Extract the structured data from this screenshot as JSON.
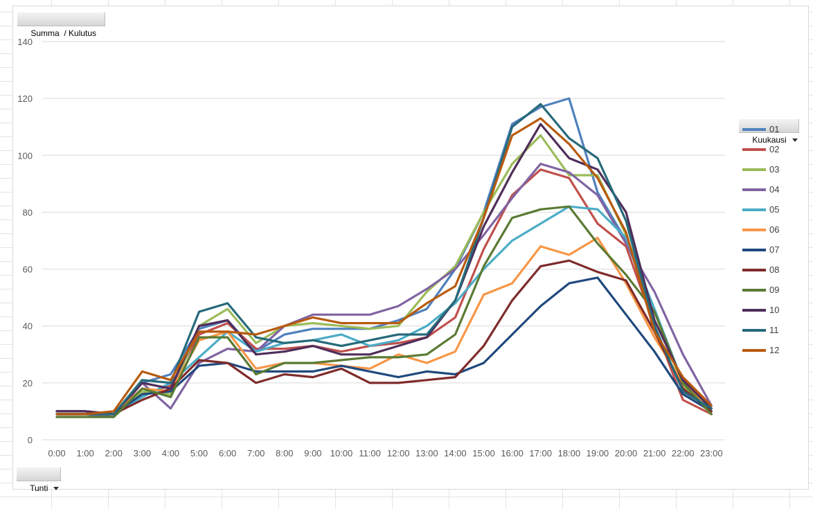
{
  "value_field_button": "Summa  / Kulutus",
  "axis_field_button": "Tunti",
  "legend_field_button": "Kuukausi",
  "chart_data": {
    "type": "line",
    "title": "",
    "xlabel": "",
    "ylabel": "",
    "ylim": [
      0,
      140
    ],
    "yticks": [
      0,
      20,
      40,
      60,
      80,
      100,
      120,
      140
    ],
    "grid": true,
    "legend_position": "right",
    "x": [
      "0:00",
      "1:00",
      "2:00",
      "3:00",
      "4:00",
      "5:00",
      "6:00",
      "7:00",
      "8:00",
      "9:00",
      "10:00",
      "11:00",
      "12:00",
      "13:00",
      "14:00",
      "15:00",
      "16:00",
      "17:00",
      "18:00",
      "19:00",
      "20:00",
      "21:00",
      "22:00",
      "23:00"
    ],
    "series": [
      {
        "name": "01",
        "color": "#4f81bd",
        "values": [
          10,
          10,
          9,
          20,
          23,
          39,
          42,
          31,
          37,
          39,
          39,
          39,
          42,
          46,
          60,
          80,
          111,
          117,
          120,
          87,
          70,
          45,
          20,
          11
        ]
      },
      {
        "name": "02",
        "color": "#c0504d",
        "values": [
          9,
          9,
          9,
          16,
          19,
          37,
          41,
          32,
          32,
          33,
          31,
          33,
          34,
          36,
          43,
          67,
          86,
          95,
          92,
          76,
          68,
          40,
          14,
          9
        ]
      },
      {
        "name": "03",
        "color": "#9bbb59",
        "values": [
          9,
          9,
          8,
          17,
          16,
          40,
          46,
          34,
          40,
          41,
          40,
          39,
          40,
          52,
          61,
          80,
          97,
          107,
          93,
          93,
          72,
          45,
          19,
          9
        ]
      },
      {
        "name": "04",
        "color": "#8064a2",
        "values": [
          9,
          9,
          8,
          20,
          11,
          27,
          32,
          31,
          40,
          44,
          44,
          44,
          47,
          53,
          60,
          72,
          85,
          97,
          94,
          86,
          69,
          52,
          30,
          12
        ]
      },
      {
        "name": "05",
        "color": "#4bacc6",
        "values": [
          9,
          9,
          9,
          15,
          20,
          29,
          38,
          31,
          34,
          35,
          37,
          33,
          35,
          40,
          48,
          60,
          70,
          76,
          82,
          81,
          71,
          46,
          20,
          10
        ]
      },
      {
        "name": "06",
        "color": "#f79646",
        "values": [
          9,
          9,
          9,
          18,
          17,
          35,
          38,
          25,
          27,
          27,
          26,
          25,
          30,
          27,
          31,
          51,
          55,
          68,
          65,
          71,
          55,
          36,
          20,
          11
        ]
      },
      {
        "name": "07",
        "color": "#1f497d",
        "values": [
          9,
          9,
          9,
          16,
          17,
          26,
          27,
          24,
          24,
          24,
          26,
          24,
          22,
          24,
          23,
          27,
          37,
          47,
          55,
          57,
          44,
          31,
          16,
          10
        ]
      },
      {
        "name": "08",
        "color": "#7f2b2b",
        "values": [
          10,
          10,
          9,
          14,
          18,
          28,
          27,
          20,
          23,
          22,
          25,
          20,
          20,
          21,
          22,
          33,
          49,
          61,
          63,
          59,
          56,
          38,
          18,
          10
        ]
      },
      {
        "name": "09",
        "color": "#5a7a33",
        "values": [
          8,
          8,
          8,
          18,
          15,
          36,
          36,
          23,
          27,
          27,
          28,
          29,
          29,
          30,
          37,
          61,
          78,
          81,
          82,
          69,
          58,
          45,
          20,
          9
        ]
      },
      {
        "name": "10",
        "color": "#4f2d5a",
        "values": [
          10,
          10,
          9,
          20,
          18,
          40,
          42,
          30,
          31,
          33,
          30,
          30,
          33,
          36,
          49,
          75,
          94,
          111,
          99,
          95,
          80,
          42,
          21,
          11
        ]
      },
      {
        "name": "11",
        "color": "#266a7a",
        "values": [
          9,
          9,
          9,
          21,
          20,
          45,
          48,
          36,
          34,
          35,
          33,
          35,
          37,
          37,
          49,
          78,
          110,
          118,
          106,
          99,
          77,
          40,
          17,
          11
        ]
      },
      {
        "name": "12",
        "color": "#b85a0e",
        "values": [
          9,
          9,
          10,
          24,
          21,
          38,
          38,
          37,
          40,
          43,
          41,
          41,
          41,
          48,
          54,
          78,
          107,
          113,
          104,
          92,
          73,
          38,
          22,
          12
        ]
      }
    ]
  }
}
